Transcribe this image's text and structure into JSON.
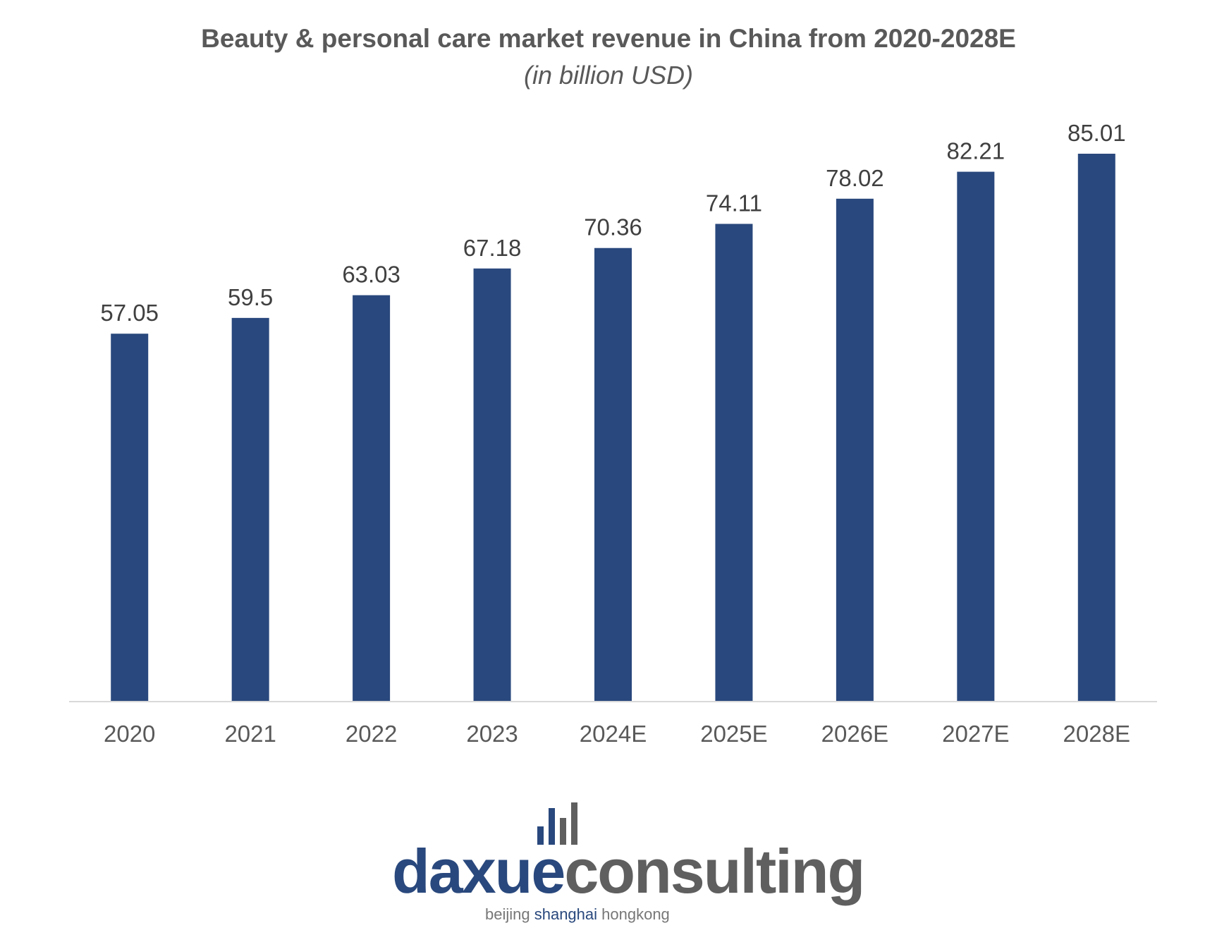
{
  "chart_data": {
    "type": "bar",
    "title": "Beauty & personal care market revenue in China from 2020-2028E",
    "subtitle": "(in billion USD)",
    "categories": [
      "2020",
      "2021",
      "2022",
      "2023",
      "2024E",
      "2025E",
      "2026E",
      "2027E",
      "2028E"
    ],
    "values": [
      57.05,
      59.5,
      63.03,
      67.18,
      70.36,
      74.11,
      78.02,
      82.21,
      85.01
    ],
    "value_labels": [
      "57.05",
      "59.5",
      "63.03",
      "67.18",
      "70.36",
      "74.11",
      "78.02",
      "82.21",
      "85.01"
    ],
    "xlabel": "",
    "ylabel": "",
    "ylim": [
      0,
      85.01
    ],
    "grid": false,
    "bar_color": "#29487D",
    "axis_color": "#D9D9D9",
    "text_color": "#595959"
  },
  "logo": {
    "part1": "daxue",
    "part2": "consulting",
    "tag1": "beijing ",
    "tag2": "shanghai",
    "tag3": " hongkong",
    "color_blue": "#29487D",
    "color_gray": "#5F5F5F"
  }
}
